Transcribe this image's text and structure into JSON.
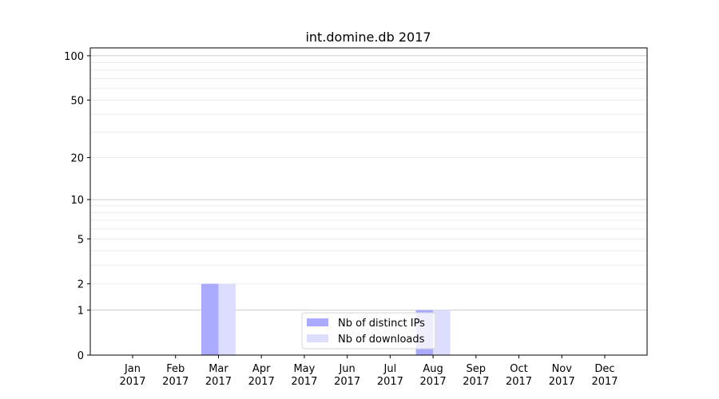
{
  "chart_data": {
    "type": "bar",
    "title": "int.domine.db 2017",
    "xlabel": "",
    "ylabel": "",
    "yscale": "symlog (log10(1+y))",
    "ylim": [
      0,
      113
    ],
    "yticks": [
      0,
      1,
      2,
      5,
      10,
      20,
      50,
      100
    ],
    "grid": true,
    "legend_position": "lower-center",
    "categories": [
      [
        "Jan",
        "2017"
      ],
      [
        "Feb",
        "2017"
      ],
      [
        "Mar",
        "2017"
      ],
      [
        "Apr",
        "2017"
      ],
      [
        "May",
        "2017"
      ],
      [
        "Jun",
        "2017"
      ],
      [
        "Jul",
        "2017"
      ],
      [
        "Aug",
        "2017"
      ],
      [
        "Sep",
        "2017"
      ],
      [
        "Oct",
        "2017"
      ],
      [
        "Nov",
        "2017"
      ],
      [
        "Dec",
        "2017"
      ]
    ],
    "series": [
      {
        "name": "Nb of distinct IPs",
        "color": "#aaaaff",
        "values": [
          0,
          0,
          2,
          0,
          0,
          0,
          0,
          1,
          0,
          0,
          0,
          0
        ]
      },
      {
        "name": "Nb of downloads",
        "color": "#ddddff",
        "values": [
          0,
          0,
          2,
          0,
          0,
          0,
          0,
          1,
          0,
          0,
          0,
          0
        ]
      }
    ]
  }
}
